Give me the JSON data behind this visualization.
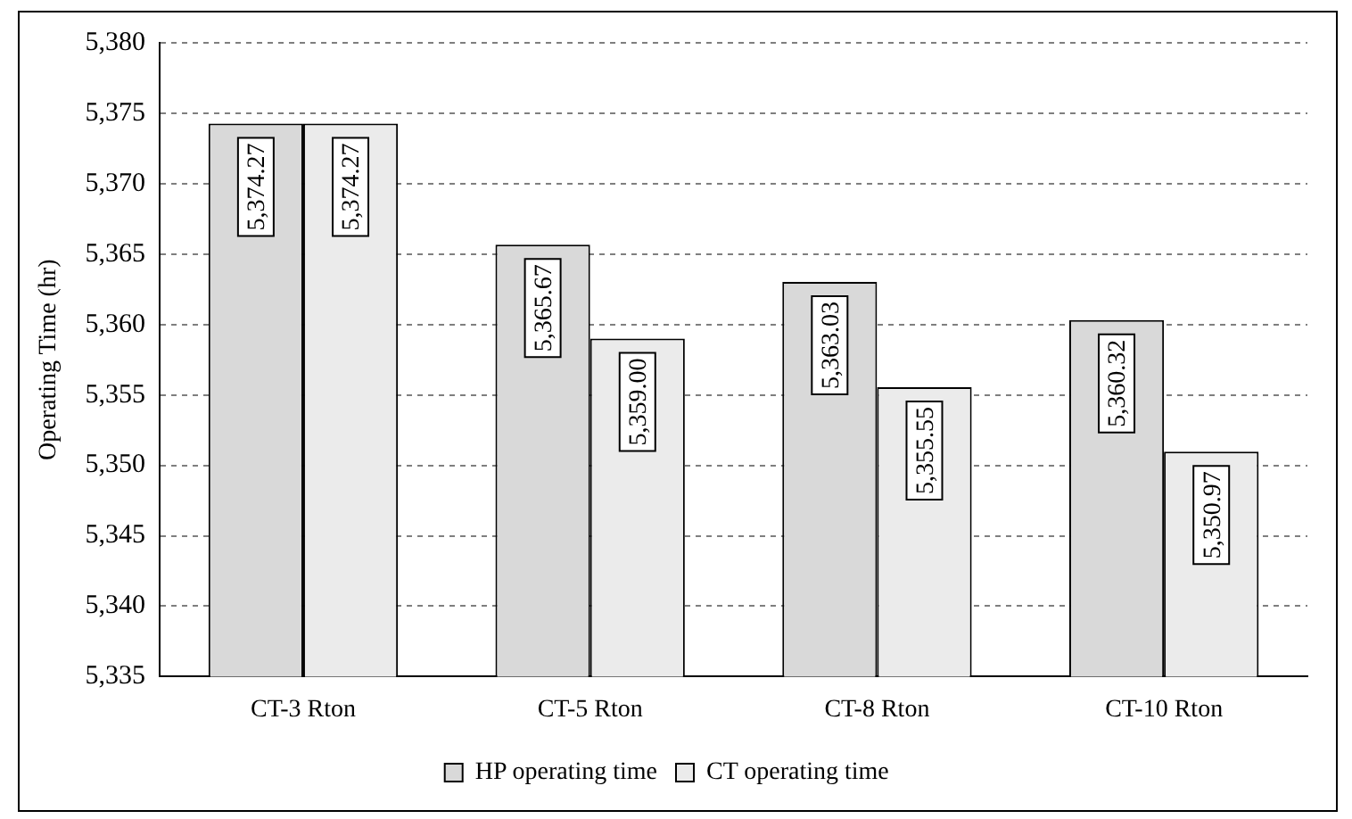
{
  "chart_data": {
    "type": "bar",
    "ylabel": "Operating Time (hr)",
    "categories": [
      "CT-3 Rton",
      "CT-5 Rton",
      "CT-8 Rton",
      "CT-10 Rton"
    ],
    "series": [
      {
        "name": "HP operating time",
        "color": "#d9d9d9",
        "values": [
          5374.27,
          5365.67,
          5363.03,
          5360.32
        ],
        "value_labels": [
          "5,374.27",
          "5,365.67",
          "5,363.03",
          "5,360.32"
        ]
      },
      {
        "name": "CT operating time",
        "color": "#ebebeb",
        "values": [
          5374.27,
          5359.0,
          5355.55,
          5350.97
        ],
        "value_labels": [
          "5,374.27",
          "5,359.00",
          "5,355.55",
          "5,350.97"
        ]
      }
    ],
    "ylim": [
      5335,
      5380
    ],
    "yticks": [
      {
        "value": 5335,
        "label": "5,335"
      },
      {
        "value": 5340,
        "label": "5,340"
      },
      {
        "value": 5345,
        "label": "5,345"
      },
      {
        "value": 5350,
        "label": "5,350"
      },
      {
        "value": 5355,
        "label": "5,355"
      },
      {
        "value": 5360,
        "label": "5,360"
      },
      {
        "value": 5365,
        "label": "5,365"
      },
      {
        "value": 5370,
        "label": "5,370"
      },
      {
        "value": 5375,
        "label": "5,375"
      },
      {
        "value": 5380,
        "label": "5,380"
      }
    ],
    "grid": "y",
    "legend": "bottom"
  }
}
